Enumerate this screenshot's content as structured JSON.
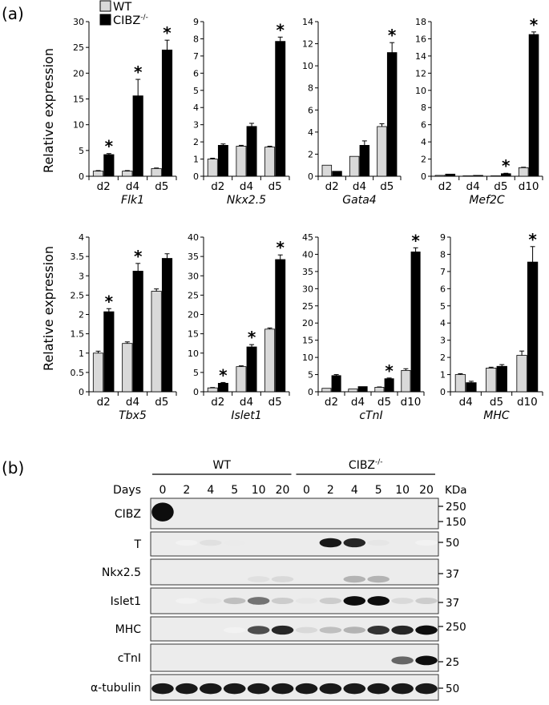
{
  "figure": {
    "panel_a_label": "(a)",
    "panel_b_label": "(b)",
    "y_axis_label": "Relative expression",
    "legend": [
      {
        "label": "WT",
        "color": "#d9d9d9"
      },
      {
        "label": "CIBZ",
        "sup": "-/-",
        "color": "#000000"
      }
    ]
  },
  "chart_data": [
    {
      "type": "bar",
      "gene": "Flk1",
      "categories": [
        "d2",
        "d4",
        "d5"
      ],
      "ylim": [
        0,
        30
      ],
      "yticks": [
        0,
        5,
        10,
        15,
        20,
        25,
        30
      ],
      "series": [
        {
          "name": "WT",
          "values": [
            1.0,
            1.0,
            1.5
          ],
          "errors": [
            0.1,
            0.1,
            0.1
          ]
        },
        {
          "name": "CIBZ-/-",
          "values": [
            4.2,
            15.6,
            24.5
          ],
          "errors": [
            0.2,
            3.2,
            1.9
          ]
        }
      ],
      "significant": [
        true,
        true,
        true
      ]
    },
    {
      "type": "bar",
      "gene": "Nkx2.5",
      "categories": [
        "d2",
        "d4",
        "d5"
      ],
      "ylim": [
        0,
        9
      ],
      "yticks": [
        0,
        1,
        2,
        3,
        4,
        5,
        6,
        7,
        8,
        9
      ],
      "series": [
        {
          "name": "WT",
          "values": [
            1.0,
            1.75,
            1.7
          ],
          "errors": [
            0.05,
            0.05,
            0.05
          ]
        },
        {
          "name": "CIBZ-/-",
          "values": [
            1.8,
            2.9,
            7.85
          ],
          "errors": [
            0.08,
            0.18,
            0.25
          ]
        }
      ],
      "significant": [
        false,
        false,
        true
      ]
    },
    {
      "type": "bar",
      "gene": "Gata4",
      "categories": [
        "d2",
        "d4",
        "d5"
      ],
      "ylim": [
        0,
        14
      ],
      "yticks": [
        0,
        2,
        4,
        6,
        8,
        10,
        12,
        14
      ],
      "series": [
        {
          "name": "WT",
          "values": [
            1.0,
            1.8,
            4.5
          ],
          "errors": [
            0.0,
            0.0,
            0.25
          ]
        },
        {
          "name": "CIBZ-/-",
          "values": [
            0.45,
            2.8,
            11.2
          ],
          "errors": [
            0.0,
            0.4,
            0.9
          ]
        }
      ],
      "significant": [
        false,
        false,
        true
      ]
    },
    {
      "type": "bar",
      "gene": "Mef2C",
      "categories": [
        "d2",
        "d4",
        "d5",
        "d10"
      ],
      "ylim": [
        0,
        18
      ],
      "yticks": [
        0,
        2,
        4,
        6,
        8,
        10,
        12,
        14,
        16,
        18
      ],
      "series": [
        {
          "name": "WT",
          "values": [
            0.1,
            0.05,
            0.05,
            1.0
          ],
          "errors": [
            0.0,
            0.0,
            0.0,
            0.05
          ]
        },
        {
          "name": "CIBZ-/-",
          "values": [
            0.25,
            0.1,
            0.3,
            16.5
          ],
          "errors": [
            0.0,
            0.0,
            0.05,
            0.3
          ]
        }
      ],
      "significant": [
        false,
        false,
        true,
        true
      ]
    },
    {
      "type": "bar",
      "gene": "Tbx5",
      "categories": [
        "d2",
        "d4",
        "d5"
      ],
      "ylim": [
        0,
        4
      ],
      "yticks": [
        0,
        0.5,
        1,
        1.5,
        2,
        2.5,
        3,
        3.5,
        4
      ],
      "series": [
        {
          "name": "WT",
          "values": [
            1.0,
            1.25,
            2.6
          ],
          "errors": [
            0.05,
            0.04,
            0.06
          ]
        },
        {
          "name": "CIBZ-/-",
          "values": [
            2.07,
            3.12,
            3.45
          ],
          "errors": [
            0.08,
            0.2,
            0.12
          ]
        }
      ],
      "significant": [
        true,
        true,
        false
      ]
    },
    {
      "type": "bar",
      "gene": "Islet1",
      "categories": [
        "d2",
        "d4",
        "d5"
      ],
      "ylim": [
        0,
        40
      ],
      "yticks": [
        0,
        5,
        10,
        15,
        20,
        25,
        30,
        35,
        40
      ],
      "series": [
        {
          "name": "WT",
          "values": [
            1.0,
            6.5,
            16.2
          ],
          "errors": [
            0.1,
            0.2,
            0.3
          ]
        },
        {
          "name": "CIBZ-/-",
          "values": [
            2.2,
            11.6,
            34.2
          ],
          "errors": [
            0.2,
            0.6,
            1.2
          ]
        }
      ],
      "significant": [
        true,
        true,
        true
      ]
    },
    {
      "type": "bar",
      "gene": "cTnI",
      "categories": [
        "d2",
        "d4",
        "d5",
        "d10"
      ],
      "ylim": [
        0,
        45
      ],
      "yticks": [
        0,
        5,
        10,
        15,
        20,
        25,
        30,
        35,
        40,
        45
      ],
      "series": [
        {
          "name": "WT",
          "values": [
            1.0,
            0.8,
            1.3,
            6.2
          ],
          "errors": [
            0.0,
            0.0,
            0.1,
            0.5
          ]
        },
        {
          "name": "CIBZ-/-",
          "values": [
            4.7,
            1.5,
            3.8,
            40.7
          ],
          "errors": [
            0.3,
            0.0,
            0.2,
            1.2
          ]
        }
      ],
      "significant": [
        false,
        false,
        true,
        true
      ]
    },
    {
      "type": "bar",
      "gene": "MHC",
      "categories": [
        "d4",
        "d5",
        "d10"
      ],
      "ylim": [
        0,
        9
      ],
      "yticks": [
        0,
        1,
        2,
        3,
        4,
        5,
        6,
        7,
        8,
        9
      ],
      "series": [
        {
          "name": "WT",
          "values": [
            1.0,
            1.38,
            2.12
          ],
          "errors": [
            0.05,
            0.05,
            0.25
          ]
        },
        {
          "name": "CIBZ-/-",
          "values": [
            0.53,
            1.48,
            7.55
          ],
          "errors": [
            0.08,
            0.1,
            0.9
          ]
        }
      ],
      "significant": [
        false,
        false,
        true
      ]
    }
  ],
  "western_blot": {
    "groups": [
      {
        "label": "WT"
      },
      {
        "label": "CIBZ",
        "sup": "-/-"
      }
    ],
    "days_label": "Days",
    "kda_label": "KDa",
    "lanes": [
      "0",
      "2",
      "4",
      "5",
      "10",
      "20",
      "0",
      "2",
      "4",
      "5",
      "10",
      "20"
    ],
    "rows": [
      {
        "label": "CIBZ",
        "markers": [
          "250",
          "150"
        ],
        "bands": [
          0.95,
          0,
          0,
          0,
          0,
          0,
          0,
          0,
          0,
          0,
          0,
          0
        ]
      },
      {
        "label": "T",
        "markers": [
          "50"
        ],
        "bands": [
          0,
          0.05,
          0.12,
          0.08,
          0,
          0,
          0,
          0.9,
          0.85,
          0.1,
          0,
          0.05
        ]
      },
      {
        "label": "Nkx2.5",
        "markers": [
          "37"
        ],
        "bands": [
          0,
          0,
          0,
          0,
          0.12,
          0.15,
          0,
          0,
          0.3,
          0.3,
          0,
          0
        ]
      },
      {
        "label": "Islet1",
        "markers": [
          "37"
        ],
        "bands": [
          0,
          0.05,
          0.1,
          0.25,
          0.55,
          0.2,
          0.1,
          0.2,
          0.95,
          0.95,
          0.15,
          0.2
        ]
      },
      {
        "label": "MHC",
        "markers": [
          "250"
        ],
        "bands": [
          0,
          0,
          0,
          0.05,
          0.7,
          0.85,
          0.15,
          0.25,
          0.3,
          0.8,
          0.85,
          0.95
        ]
      },
      {
        "label": "cTnI",
        "markers": [
          "25"
        ],
        "bands": [
          0,
          0,
          0,
          0,
          0,
          0,
          0,
          0,
          0,
          0,
          0.6,
          0.95
        ]
      },
      {
        "label": "α-tubulin",
        "markers": [
          "50"
        ],
        "bands": [
          0.9,
          0.9,
          0.9,
          0.9,
          0.9,
          0.9,
          0.9,
          0.9,
          0.9,
          0.9,
          0.9,
          0.9
        ]
      }
    ]
  }
}
